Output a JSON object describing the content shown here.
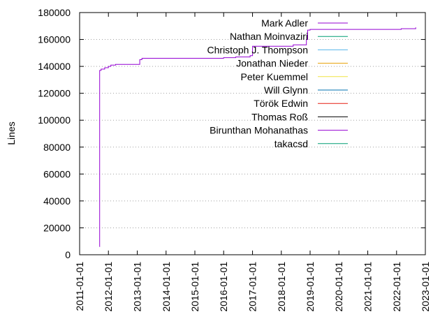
{
  "chart_data": {
    "type": "line",
    "title": "",
    "xlabel": "",
    "ylabel": "Lines",
    "xlim": [
      "2011-01-01",
      "2023-01-01"
    ],
    "ylim": [
      0,
      180000
    ],
    "x_ticks": [
      "2011-01-01",
      "2012-01-01",
      "2013-01-01",
      "2014-01-01",
      "2015-01-01",
      "2016-01-01",
      "2017-01-01",
      "2018-01-01",
      "2019-01-01",
      "2020-01-01",
      "2021-01-01",
      "2022-01-01",
      "2023-01-01"
    ],
    "y_ticks": [
      0,
      20000,
      40000,
      60000,
      80000,
      100000,
      120000,
      140000,
      160000,
      180000
    ],
    "grid": "horizontal dotted",
    "legend_position": "top-right",
    "series": [
      {
        "name": "Mark Adler",
        "color": "#9400d3",
        "x": [
          "2011-09-10",
          "2011-09-12",
          "2011-10-01",
          "2011-11-15",
          "2012-01-01",
          "2012-02-01",
          "2012-04-01",
          "2012-06-01",
          "2013-01-01",
          "2013-02-01",
          "2013-03-01",
          "2014-01-01",
          "2015-06-01",
          "2016-01-01",
          "2016-06-01",
          "2016-12-01",
          "2017-01-01",
          "2017-06-01",
          "2018-01-01",
          "2018-06-01",
          "2018-11-15",
          "2018-12-01",
          "2019-01-01",
          "2020-01-01",
          "2021-01-01",
          "2022-01-01",
          "2022-03-01",
          "2022-08-01",
          "2022-09-01"
        ],
        "values": [
          6000,
          137000,
          138000,
          139000,
          140000,
          141000,
          141500,
          141500,
          141500,
          145000,
          146000,
          146000,
          146000,
          146500,
          147000,
          148000,
          155000,
          155000,
          155000,
          156000,
          160000,
          167000,
          167500,
          167500,
          167500,
          167500,
          168000,
          168000,
          169000
        ]
      },
      {
        "name": "Nathan Moinvaziri",
        "color": "#009e73",
        "x": [],
        "values": []
      },
      {
        "name": "Christoph J. Thompson",
        "color": "#56b4e9",
        "x": [],
        "values": []
      },
      {
        "name": "Jonathan Nieder",
        "color": "#e69f00",
        "x": [],
        "values": []
      },
      {
        "name": "Peter Kuemmel",
        "color": "#f0e442",
        "x": [],
        "values": []
      },
      {
        "name": "Will Glynn",
        "color": "#0072b2",
        "x": [],
        "values": []
      },
      {
        "name": "Török Edwin",
        "color": "#e51e10",
        "x": [],
        "values": []
      },
      {
        "name": "Thomas Roß",
        "color": "#000000",
        "x": [],
        "values": []
      },
      {
        "name": "Birunthan Mohanathas",
        "color": "#9400d3",
        "x": [],
        "values": []
      },
      {
        "name": "takacsd",
        "color": "#009e73",
        "x": [],
        "values": []
      }
    ]
  }
}
